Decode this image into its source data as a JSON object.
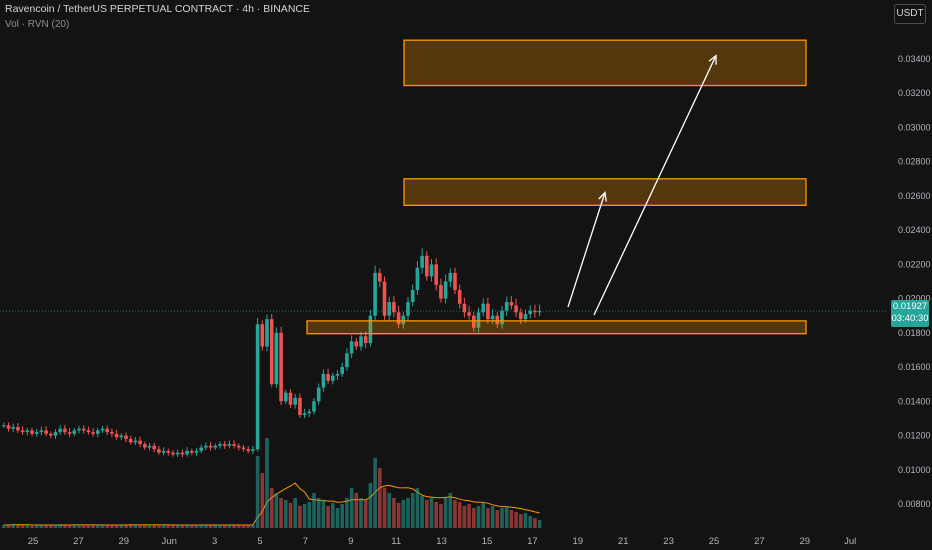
{
  "header": {
    "title": "Ravencoin / TetherUS PERPETUAL CONTRACT · 4h · BINANCE",
    "volume_label": "Vol · RVN (20)",
    "currency": "USDT"
  },
  "price_badge": {
    "price": "0.01927",
    "countdown": "03:40:30",
    "color": "#26a69a"
  },
  "colors": {
    "up": "#26a69a",
    "down": "#ef5350",
    "zone": "#ff9800",
    "arrow": "#ffffff",
    "volume_ma": "#ff9800"
  },
  "chart_data": {
    "type": "candlestick",
    "title": "Ravencoin / TetherUS PERPETUAL CONTRACT · 4h · BINANCE",
    "interval": "4h",
    "y_axis": {
      "ticks": [
        "0.03400",
        "0.03200",
        "0.03000",
        "0.02800",
        "0.02600",
        "0.02400",
        "0.02200",
        "0.02000",
        "0.01800",
        "0.01600",
        "0.01400",
        "0.01200",
        "0.01000",
        "0.00800"
      ],
      "ylim": [
        0.0068,
        0.0352
      ]
    },
    "x_axis": {
      "ticks": [
        "25",
        "27",
        "29",
        "Jun",
        "3",
        "5",
        "7",
        "9",
        "11",
        "13",
        "15",
        "17",
        "19",
        "21",
        "23",
        "25",
        "27",
        "29",
        "Jul"
      ]
    },
    "candle_closes": [
      0.0126,
      0.0124,
      0.0125,
      0.0123,
      0.0122,
      0.0123,
      0.0121,
      0.0122,
      0.0123,
      0.0121,
      0.012,
      0.0122,
      0.0124,
      0.0122,
      0.0121,
      0.0123,
      0.0124,
      0.0123,
      0.0122,
      0.0121,
      0.0123,
      0.0124,
      0.0122,
      0.0121,
      0.0119,
      0.012,
      0.0118,
      0.0116,
      0.0117,
      0.0115,
      0.0113,
      0.0114,
      0.0112,
      0.011,
      0.0111,
      0.011,
      0.0109,
      0.011,
      0.0109,
      0.0111,
      0.011,
      0.0111,
      0.0113,
      0.0114,
      0.0113,
      0.0114,
      0.0115,
      0.0114,
      0.0115,
      0.0114,
      0.0113,
      0.0112,
      0.0111,
      0.0112,
      0.0185,
      0.0172,
      0.0188,
      0.015,
      0.018,
      0.014,
      0.0145,
      0.0138,
      0.0142,
      0.0132,
      0.0133,
      0.0134,
      0.014,
      0.0148,
      0.0156,
      0.0152,
      0.0155,
      0.0156,
      0.016,
      0.0168,
      0.0175,
      0.0172,
      0.0178,
      0.0174,
      0.019,
      0.0215,
      0.021,
      0.019,
      0.0198,
      0.0192,
      0.0185,
      0.019,
      0.0198,
      0.0205,
      0.0218,
      0.0225,
      0.0213,
      0.022,
      0.0208,
      0.02,
      0.021,
      0.0215,
      0.0205,
      0.0197,
      0.0192,
      0.019,
      0.0183,
      0.0192,
      0.0197,
      0.0188,
      0.019,
      0.0185,
      0.0193,
      0.0198,
      0.0196,
      0.0192,
      0.0188,
      0.0191,
      0.0193,
      0.0192,
      0.01927
    ],
    "volume_scale": [
      3,
      3,
      4,
      3,
      3,
      3,
      2,
      3,
      3,
      3,
      3,
      3,
      4,
      3,
      3,
      3,
      3,
      3,
      3,
      3,
      3,
      3,
      3,
      3,
      3,
      3,
      3,
      4,
      3,
      3,
      3,
      3,
      3,
      3,
      3,
      3,
      3,
      3,
      3,
      3,
      3,
      3,
      3,
      3,
      3,
      3,
      3,
      3,
      3,
      3,
      3,
      3,
      3,
      3,
      72,
      55,
      90,
      40,
      35,
      30,
      28,
      25,
      30,
      22,
      24,
      26,
      35,
      30,
      28,
      22,
      25,
      20,
      24,
      30,
      40,
      35,
      30,
      28,
      45,
      70,
      60,
      40,
      35,
      30,
      25,
      28,
      30,
      35,
      40,
      32,
      28,
      30,
      26,
      24,
      30,
      35,
      28,
      26,
      22,
      24,
      20,
      22,
      25,
      20,
      22,
      18,
      20,
      22,
      18,
      16,
      14,
      15,
      12,
      10,
      8
    ],
    "annotations": {
      "support_zone": [
        0.01795,
        0.0187
      ],
      "target_zone_1": [
        0.02545,
        0.027
      ],
      "target_zone_2": [
        0.03245,
        0.0351
      ],
      "arrow_1_to": 0.0262,
      "arrow_2_to": 0.0342
    },
    "current_price": 0.01927,
    "grid": false
  }
}
